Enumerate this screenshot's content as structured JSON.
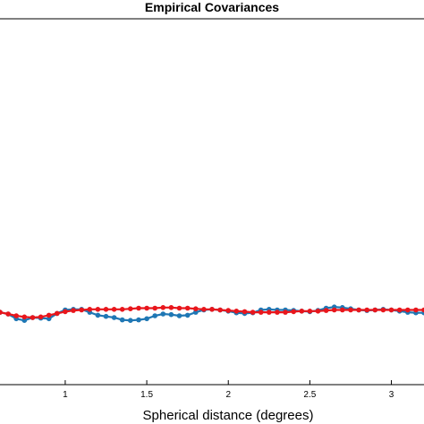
{
  "chart_data": {
    "type": "line",
    "title": "Empirical Covariances",
    "xlabel": "Spherical distance (degrees)",
    "ylabel": "",
    "xlim": [
      0.6,
      3.2
    ],
    "ylim": [
      -0.25,
      1.0
    ],
    "xticks": [
      {
        "value": 1,
        "label": "1"
      },
      {
        "value": 1.5,
        "label": "1.5"
      },
      {
        "value": 2,
        "label": "2"
      },
      {
        "value": 2.5,
        "label": "2.5"
      },
      {
        "value": 3,
        "label": "3"
      }
    ],
    "series": [
      {
        "color": "#1f77b4",
        "x": [
          0.6,
          0.65,
          0.7,
          0.75,
          0.8,
          0.85,
          0.9,
          0.95,
          1.0,
          1.05,
          1.1,
          1.15,
          1.2,
          1.25,
          1.3,
          1.35,
          1.4,
          1.45,
          1.5,
          1.55,
          1.6,
          1.65,
          1.7,
          1.75,
          1.8,
          1.85,
          1.9,
          1.95,
          2.0,
          2.05,
          2.1,
          2.15,
          2.2,
          2.25,
          2.3,
          2.35,
          2.4,
          2.45,
          2.5,
          2.55,
          2.6,
          2.65,
          2.7,
          2.75,
          2.8,
          2.85,
          2.9,
          2.95,
          3.0,
          3.05,
          3.1,
          3.15,
          3.2
        ],
        "y": [
          -0.0027,
          -0.0087,
          -0.0247,
          -0.0307,
          -0.0207,
          -0.0227,
          -0.0247,
          -0.0067,
          0.0053,
          0.0073,
          0.0073,
          -0.0027,
          -0.0127,
          -0.0167,
          -0.0207,
          -0.0287,
          -0.0307,
          -0.0287,
          -0.0247,
          -0.0147,
          -0.0087,
          -0.0107,
          -0.0147,
          -0.0127,
          -0.0027,
          0.0053,
          0.0073,
          0.0053,
          0.0013,
          -0.0047,
          -0.0067,
          -0.0047,
          0.0053,
          0.0073,
          0.0053,
          0.0053,
          0.0033,
          0.0013,
          -0.0007,
          0.0033,
          0.0113,
          0.0153,
          0.0133,
          0.0093,
          0.0053,
          0.0033,
          0.0053,
          0.0073,
          0.0053,
          0.0013,
          -0.0027,
          -0.0047,
          -0.0047
        ]
      },
      {
        "color": "#e8161c",
        "x": [
          0.6,
          0.65,
          0.7,
          0.75,
          0.8,
          0.85,
          0.9,
          0.95,
          1.0,
          1.05,
          1.1,
          1.15,
          1.2,
          1.25,
          1.3,
          1.35,
          1.4,
          1.45,
          1.5,
          1.55,
          1.6,
          1.65,
          1.7,
          1.75,
          1.8,
          1.85,
          1.9,
          1.95,
          2.0,
          2.05,
          2.1,
          2.15,
          2.2,
          2.25,
          2.3,
          2.35,
          2.4,
          2.45,
          2.5,
          2.55,
          2.6,
          2.65,
          2.7,
          2.75,
          2.8,
          2.85,
          2.9,
          2.95,
          3.0,
          3.05,
          3.1,
          3.15,
          3.2
        ],
        "y": [
          -0.0027,
          -0.0087,
          -0.0147,
          -0.0187,
          -0.0207,
          -0.0187,
          -0.0127,
          -0.0067,
          -0.0007,
          0.0033,
          0.0053,
          0.0073,
          0.0073,
          0.0073,
          0.0073,
          0.0073,
          0.0093,
          0.0113,
          0.0113,
          0.0113,
          0.0133,
          0.0133,
          0.0113,
          0.0113,
          0.0093,
          0.0073,
          0.0073,
          0.0053,
          0.0033,
          0.0013,
          -0.0007,
          -0.0027,
          -0.0027,
          -0.0027,
          -0.0027,
          -0.0027,
          -0.0007,
          0.0013,
          0.0013,
          0.0013,
          0.0033,
          0.0053,
          0.0053,
          0.0053,
          0.0053,
          0.0053,
          0.0053,
          0.0053,
          0.0053,
          0.0053,
          0.0053,
          0.0053,
          0.0053
        ]
      }
    ]
  }
}
